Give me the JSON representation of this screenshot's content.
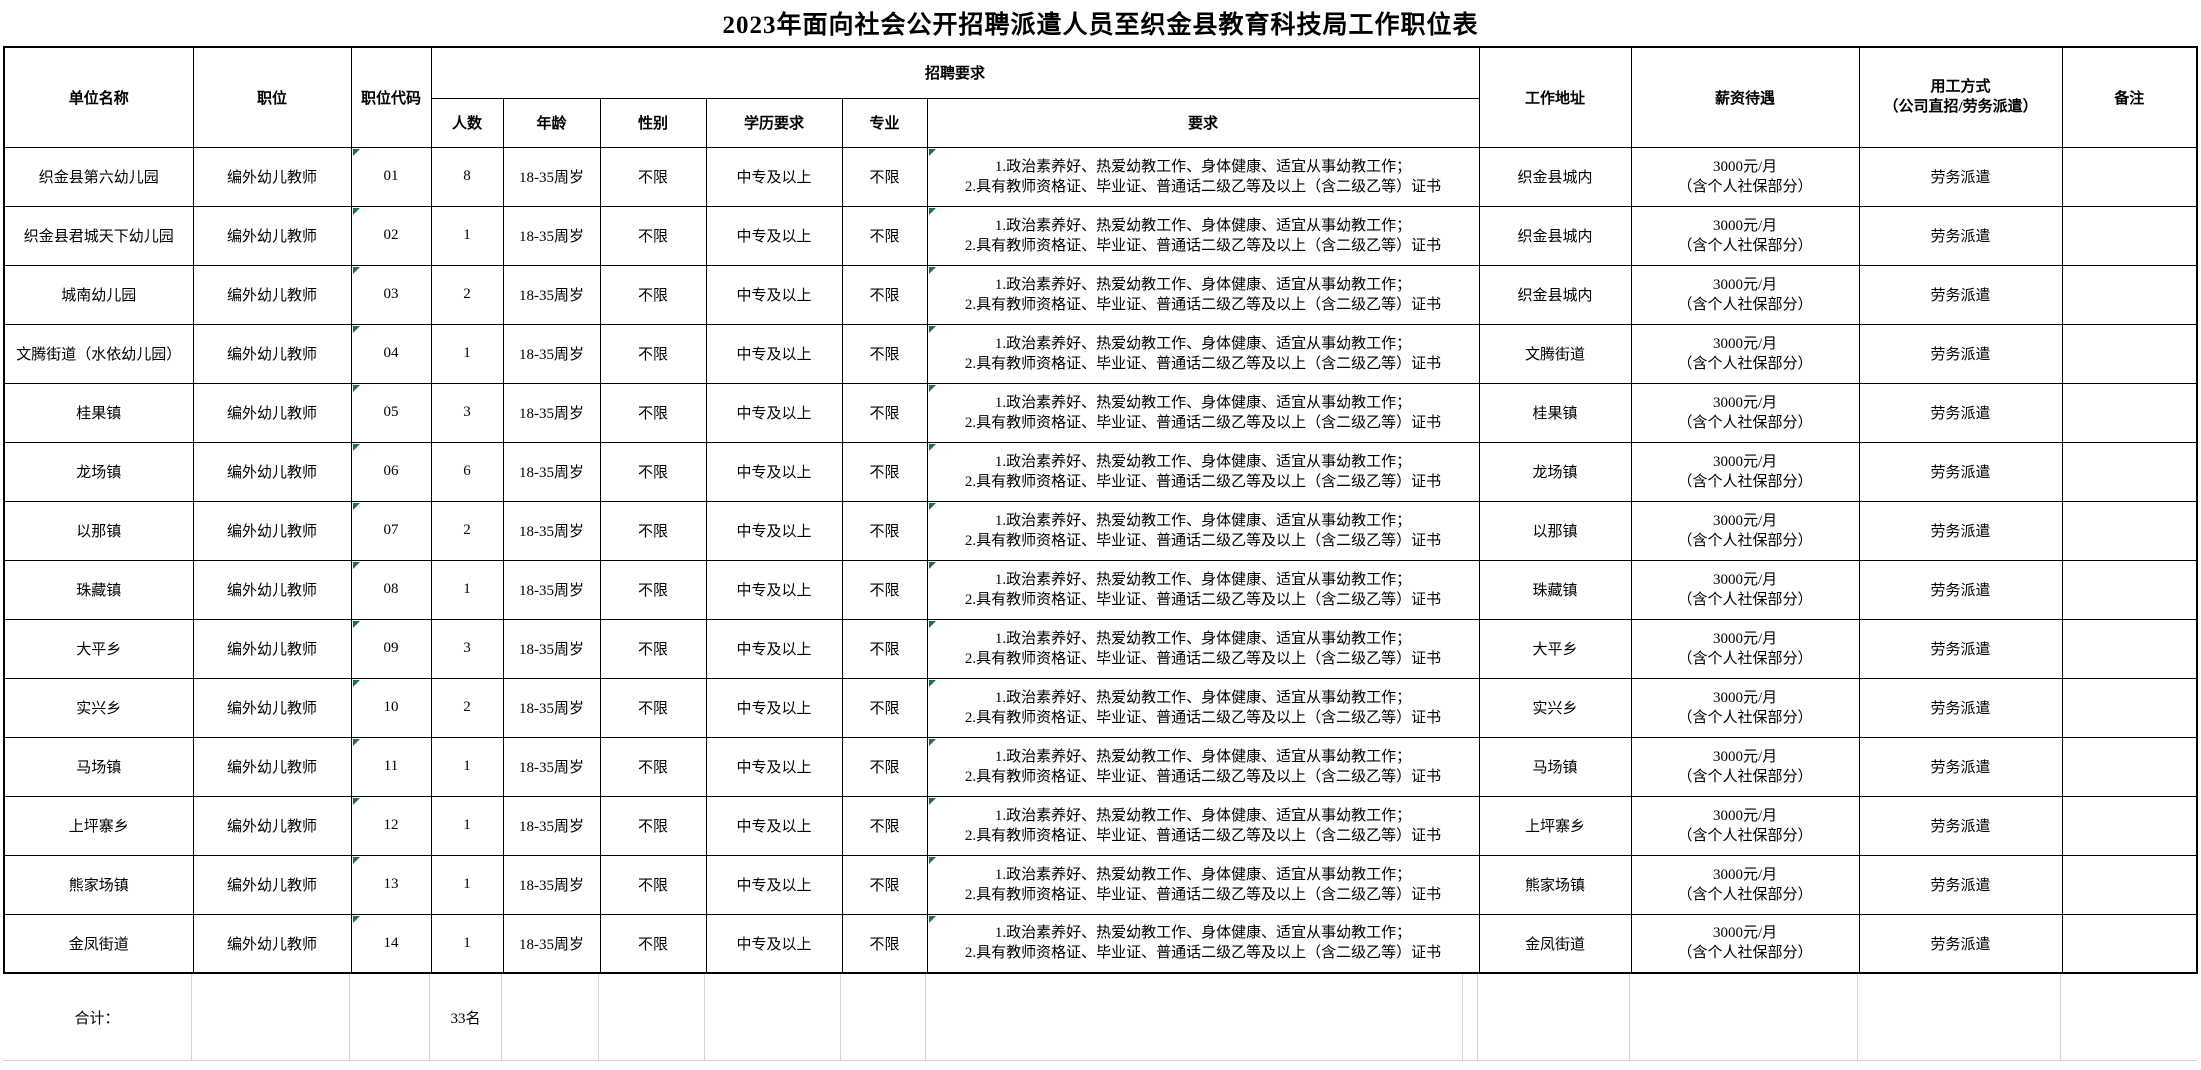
{
  "title": "2023年面向社会公开招聘派遣人员至织金县教育科技局工作职位表",
  "header": {
    "unit": "单位名称",
    "position": "职位",
    "code": "职位代码",
    "recruit_group": "招聘要求",
    "count": "人数",
    "age": "年龄",
    "gender": "性别",
    "education": "学历要求",
    "major": "专业",
    "requirement": "要求",
    "address": "工作地址",
    "salary": "薪资待遇",
    "employment_line1": "用工方式",
    "employment_line2": "（公司直招/劳务派遣）",
    "remark": "备注"
  },
  "shared": {
    "requirement_line1": "1.政治素养好、热爱幼教工作、身体健康、适宜从事幼教工作；",
    "requirement_line2": "2.具有教师资格证、毕业证、普通话二级乙等及以上（含二级乙等）证书",
    "salary_line1": "3000元/月",
    "salary_line2": "（含个人社保部分）",
    "employment_type": "劳务派遣"
  },
  "rows": [
    {
      "unit": "织金县第六幼儿园",
      "position": "编外幼儿教师",
      "code": "01",
      "count": "8",
      "age": "18-35周岁",
      "gender": "不限",
      "education": "中专及以上",
      "major": "不限",
      "address": "织金县城内",
      "remark": ""
    },
    {
      "unit": "织金县君城天下幼儿园",
      "position": "编外幼儿教师",
      "code": "02",
      "count": "1",
      "age": "18-35周岁",
      "gender": "不限",
      "education": "中专及以上",
      "major": "不限",
      "address": "织金县城内",
      "remark": ""
    },
    {
      "unit": "城南幼儿园",
      "position": "编外幼儿教师",
      "code": "03",
      "count": "2",
      "age": "18-35周岁",
      "gender": "不限",
      "education": "中专及以上",
      "major": "不限",
      "address": "织金县城内",
      "remark": ""
    },
    {
      "unit": "文腾街道（水依幼儿园）",
      "position": "编外幼儿教师",
      "code": "04",
      "count": "1",
      "age": "18-35周岁",
      "gender": "不限",
      "education": "中专及以上",
      "major": "不限",
      "address": "文腾街道",
      "remark": ""
    },
    {
      "unit": "桂果镇",
      "position": "编外幼儿教师",
      "code": "05",
      "count": "3",
      "age": "18-35周岁",
      "gender": "不限",
      "education": "中专及以上",
      "major": "不限",
      "address": "桂果镇",
      "remark": ""
    },
    {
      "unit": "龙场镇",
      "position": "编外幼儿教师",
      "code": "06",
      "count": "6",
      "age": "18-35周岁",
      "gender": "不限",
      "education": "中专及以上",
      "major": "不限",
      "address": "龙场镇",
      "remark": ""
    },
    {
      "unit": "以那镇",
      "position": "编外幼儿教师",
      "code": "07",
      "count": "2",
      "age": "18-35周岁",
      "gender": "不限",
      "education": "中专及以上",
      "major": "不限",
      "address": "以那镇",
      "remark": ""
    },
    {
      "unit": "珠藏镇",
      "position": "编外幼儿教师",
      "code": "08",
      "count": "1",
      "age": "18-35周岁",
      "gender": "不限",
      "education": "中专及以上",
      "major": "不限",
      "address": "珠藏镇",
      "remark": ""
    },
    {
      "unit": "大平乡",
      "position": "编外幼儿教师",
      "code": "09",
      "count": "3",
      "age": "18-35周岁",
      "gender": "不限",
      "education": "中专及以上",
      "major": "不限",
      "address": "大平乡",
      "remark": ""
    },
    {
      "unit": "实兴乡",
      "position": "编外幼儿教师",
      "code": "10",
      "count": "2",
      "age": "18-35周岁",
      "gender": "不限",
      "education": "中专及以上",
      "major": "不限",
      "address": "实兴乡",
      "remark": ""
    },
    {
      "unit": "马场镇",
      "position": "编外幼儿教师",
      "code": "11",
      "count": "1",
      "age": "18-35周岁",
      "gender": "不限",
      "education": "中专及以上",
      "major": "不限",
      "address": "马场镇",
      "remark": ""
    },
    {
      "unit": "上坪寨乡",
      "position": "编外幼儿教师",
      "code": "12",
      "count": "1",
      "age": "18-35周岁",
      "gender": "不限",
      "education": "中专及以上",
      "major": "不限",
      "address": "上坪寨乡",
      "remark": ""
    },
    {
      "unit": "熊家场镇",
      "position": "编外幼儿教师",
      "code": "13",
      "count": "1",
      "age": "18-35周岁",
      "gender": "不限",
      "education": "中专及以上",
      "major": "不限",
      "address": "熊家场镇",
      "remark": ""
    },
    {
      "unit": "金凤街道",
      "position": "编外幼儿教师",
      "code": "14",
      "count": "1",
      "age": "18-35周岁",
      "gender": "不限",
      "education": "中专及以上",
      "major": "不限",
      "address": "金凤街道",
      "remark": ""
    }
  ],
  "footer": {
    "total_label": "合计：",
    "total_value": "33名"
  },
  "colors": {
    "error_indicator_green": "#1e7145",
    "grid_gray": "#d4d4d4",
    "border_black": "#000000",
    "background": "#ffffff"
  }
}
